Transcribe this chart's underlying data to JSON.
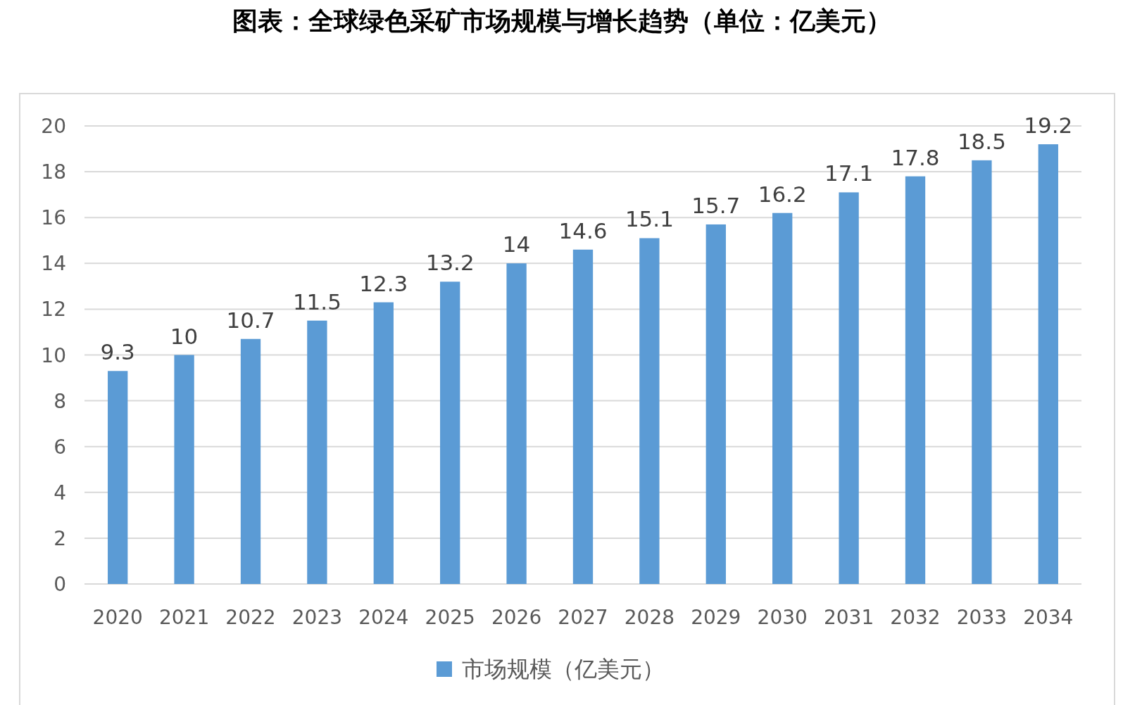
{
  "chart_data": {
    "type": "bar",
    "title": "图表：全球绿色采矿市场规模与增长趋势（单位：亿美元）",
    "categories": [
      "2020",
      "2021",
      "2022",
      "2023",
      "2024",
      "2025",
      "2026",
      "2027",
      "2028",
      "2029",
      "2030",
      "2031",
      "2032",
      "2033",
      "2034"
    ],
    "series": [
      {
        "name": "市场规模（亿美元）",
        "color": "#5b9bd5",
        "values": [
          9.3,
          10,
          10.7,
          11.5,
          12.3,
          13.2,
          14,
          14.6,
          15.1,
          15.7,
          16.2,
          17.1,
          17.8,
          18.5,
          19.2
        ]
      }
    ],
    "ylim": [
      0,
      20
    ],
    "yticks": [
      0,
      2,
      4,
      6,
      8,
      10,
      12,
      14,
      16,
      18,
      20
    ],
    "grid": "y",
    "legend": "bottom",
    "data_labels": true
  }
}
